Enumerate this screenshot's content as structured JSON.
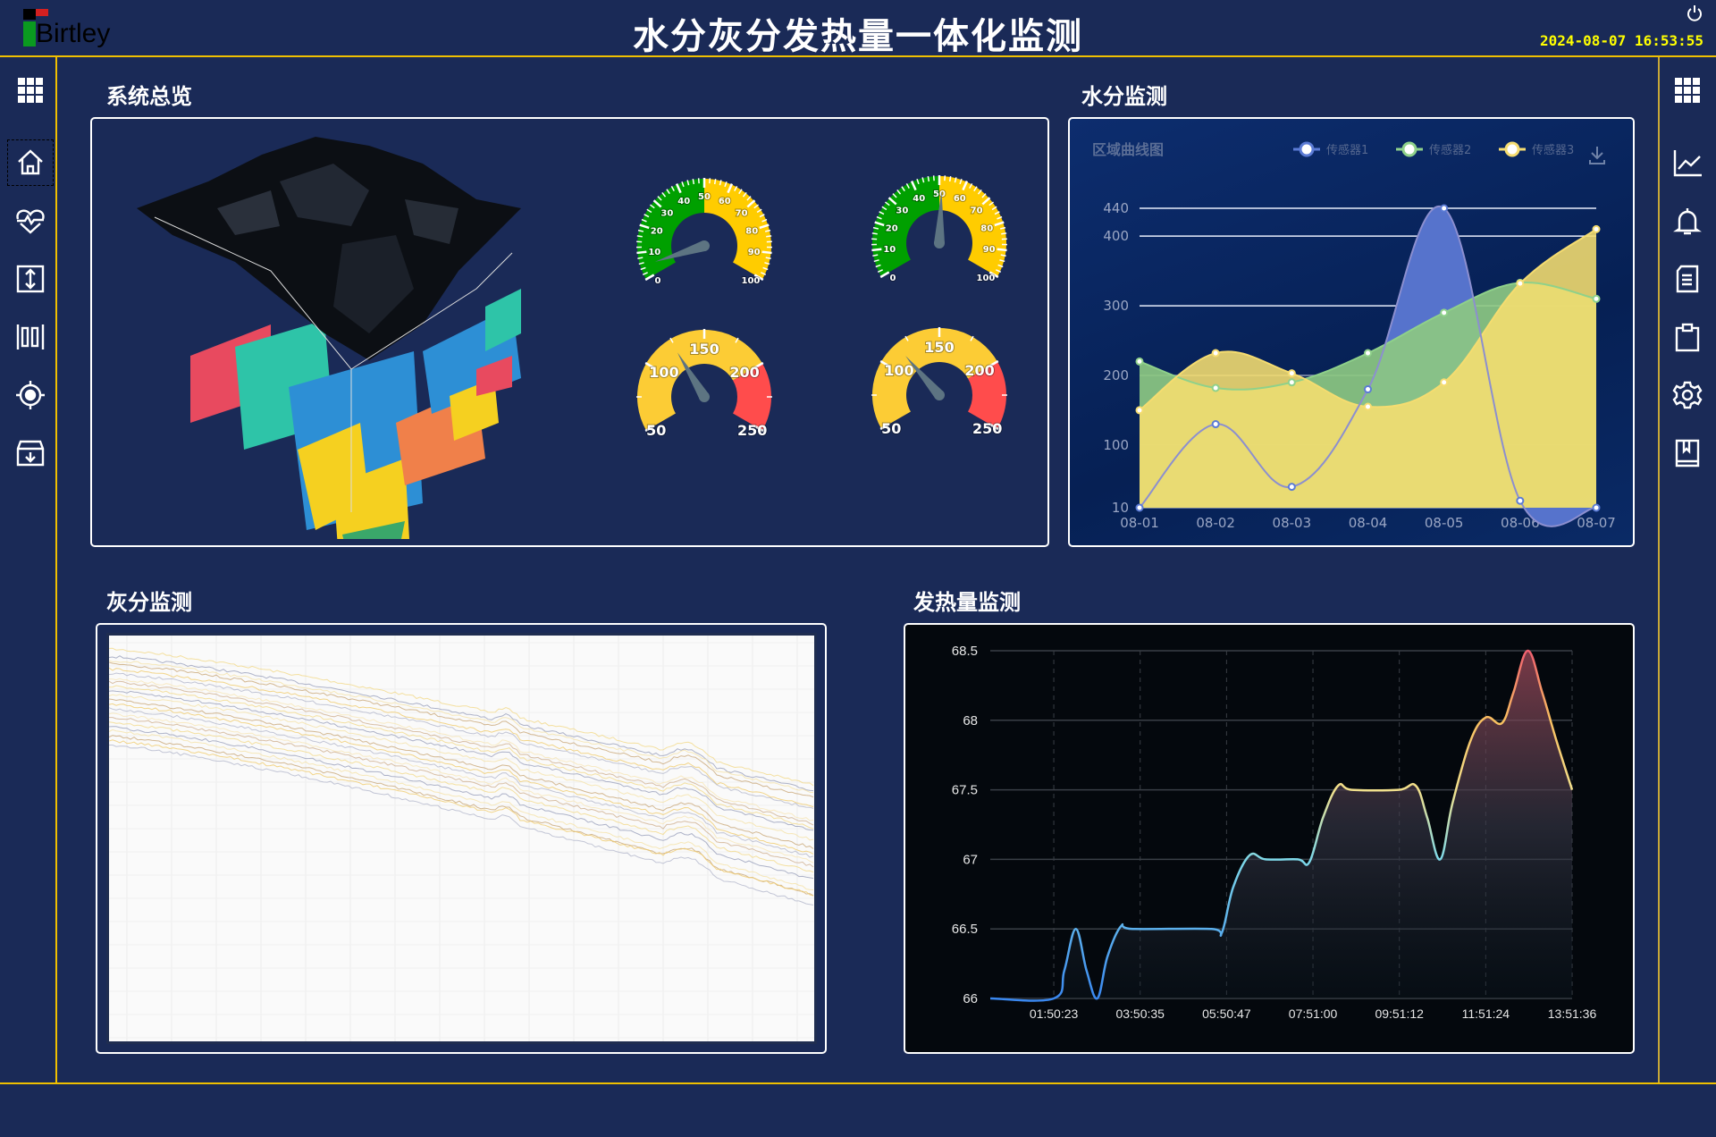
{
  "header": {
    "logo_text": "Birtley",
    "title": "水分灰分发热量一体化监测",
    "datetime": "2024-08-07  16:53:55",
    "power_icon": "power-icon"
  },
  "left_sidebar": {
    "items": [
      {
        "icon": "apps-grid-icon"
      },
      {
        "icon": "home-icon",
        "selected": true
      },
      {
        "icon": "heart-pulse-icon"
      },
      {
        "icon": "vertical-resize-icon"
      },
      {
        "icon": "barcode-icon"
      },
      {
        "icon": "target-icon"
      },
      {
        "icon": "archive-download-icon"
      }
    ]
  },
  "right_sidebar": {
    "items": [
      {
        "icon": "apps-grid-icon"
      },
      {
        "icon": "line-chart-icon"
      },
      {
        "icon": "bell-icon"
      },
      {
        "icon": "document-icon"
      },
      {
        "icon": "clipboard-icon"
      },
      {
        "icon": "settings-gear-icon"
      },
      {
        "icon": "bookmark-book-icon"
      }
    ]
  },
  "overview": {
    "title": "系统总览",
    "gauges": [
      {
        "min": 0,
        "max": 100,
        "value": 5,
        "labels": [
          "0",
          "10",
          "20",
          "30",
          "40",
          "50",
          "60",
          "70",
          "80",
          "90",
          "100"
        ],
        "segments": [
          {
            "to": 50,
            "color": "#00a000"
          },
          {
            "to": 100,
            "color": "#ffcc00"
          }
        ]
      },
      {
        "min": 0,
        "max": 100,
        "value": 51,
        "labels": [
          "0",
          "10",
          "20",
          "30",
          "40",
          "50",
          "60",
          "70",
          "80",
          "90",
          "100"
        ],
        "segments": [
          {
            "to": 50,
            "color": "#00a000"
          },
          {
            "to": 100,
            "color": "#ffcc00"
          }
        ]
      },
      {
        "min": 50,
        "max": 250,
        "value": 124,
        "labels": [
          "50",
          "100",
          "150",
          "200",
          "250"
        ],
        "segments": [
          {
            "to": 200,
            "color": "#fccc35"
          },
          {
            "to": 250,
            "color": "#ff4c4c"
          }
        ]
      },
      {
        "min": 50,
        "max": 250,
        "value": 116,
        "labels": [
          "50",
          "100",
          "150",
          "200",
          "250"
        ],
        "segments": [
          {
            "to": 200,
            "color": "#fccc35"
          },
          {
            "to": 250,
            "color": "#ff4c4c"
          }
        ]
      }
    ]
  },
  "moisture": {
    "title": "水分监测",
    "chart_data": {
      "type": "area",
      "title": "区域曲线图",
      "categories": [
        "08-01",
        "08-02",
        "08-03",
        "08-04",
        "08-05",
        "08-06",
        "08-07"
      ],
      "y_ticks": [
        10,
        100,
        200,
        300,
        400,
        440
      ],
      "ylim": [
        10,
        440
      ],
      "legend_position": "top-right",
      "series": [
        {
          "name": "传感器1",
          "color": "#5b7bd5",
          "values": [
            10,
            130,
            40,
            180,
            440,
            20,
            10
          ]
        },
        {
          "name": "传感器2",
          "color": "#8fd18a",
          "values": [
            220,
            182,
            190,
            232,
            290,
            333,
            310
          ]
        },
        {
          "name": "传感器3",
          "color": "#f5dc70",
          "values": [
            150,
            232,
            203,
            155,
            190,
            332,
            410
          ]
        }
      ]
    }
  },
  "ash": {
    "title": "灰分监测"
  },
  "calorific": {
    "title": "发热量监测",
    "chart_data": {
      "type": "line",
      "ylim": [
        66,
        68.5
      ],
      "y_ticks": [
        "66",
        "66.5",
        "67",
        "67.5",
        "68",
        "68.5"
      ],
      "x_ticks": [
        "01:50:23",
        "03:50:35",
        "05:50:47",
        "07:51:00",
        "09:51:12",
        "11:51:24",
        "13:51:36"
      ],
      "xlim": [
        "00:22:00",
        "13:51:36"
      ],
      "grid": true,
      "visual_map": [
        {
          "value": 66,
          "color": "#3a88f0"
        },
        {
          "value": 67,
          "color": "#7ed8e8"
        },
        {
          "value": 67.5,
          "color": "#f2e08c"
        },
        {
          "value": 68,
          "color": "#f8bf60"
        },
        {
          "value": 68.5,
          "color": "#f06070"
        }
      ],
      "points": [
        [
          "00:22:00",
          66
        ],
        [
          "01:50:23",
          66
        ],
        [
          "02:05:00",
          66.2
        ],
        [
          "02:21:00",
          66.5
        ],
        [
          "02:36:00",
          66.2
        ],
        [
          "02:51:00",
          66
        ],
        [
          "03:05:00",
          66.3
        ],
        [
          "03:24:00",
          66.52
        ],
        [
          "03:40:00",
          66.5
        ],
        [
          "05:30:00",
          66.5
        ],
        [
          "05:44:00",
          66.47
        ],
        [
          "06:00:00",
          66.8
        ],
        [
          "06:23:00",
          67.03
        ],
        [
          "06:45:00",
          67
        ],
        [
          "07:30:00",
          67
        ],
        [
          "07:46:00",
          66.98
        ],
        [
          "08:05:00",
          67.3
        ],
        [
          "08:26:00",
          67.53
        ],
        [
          "08:45:00",
          67.5
        ],
        [
          "09:50:00",
          67.5
        ],
        [
          "10:14:00",
          67.53
        ],
        [
          "10:30:00",
          67.3
        ],
        [
          "10:48:00",
          67
        ],
        [
          "11:05:00",
          67.4
        ],
        [
          "11:30:00",
          67.85
        ],
        [
          "11:51:24",
          68.02
        ],
        [
          "12:14:00",
          67.98
        ],
        [
          "12:30:00",
          68.2
        ],
        [
          "12:50:00",
          68.5
        ],
        [
          "13:10:00",
          68.2
        ],
        [
          "13:30:00",
          67.85
        ],
        [
          "13:51:36",
          67.5
        ]
      ]
    }
  }
}
